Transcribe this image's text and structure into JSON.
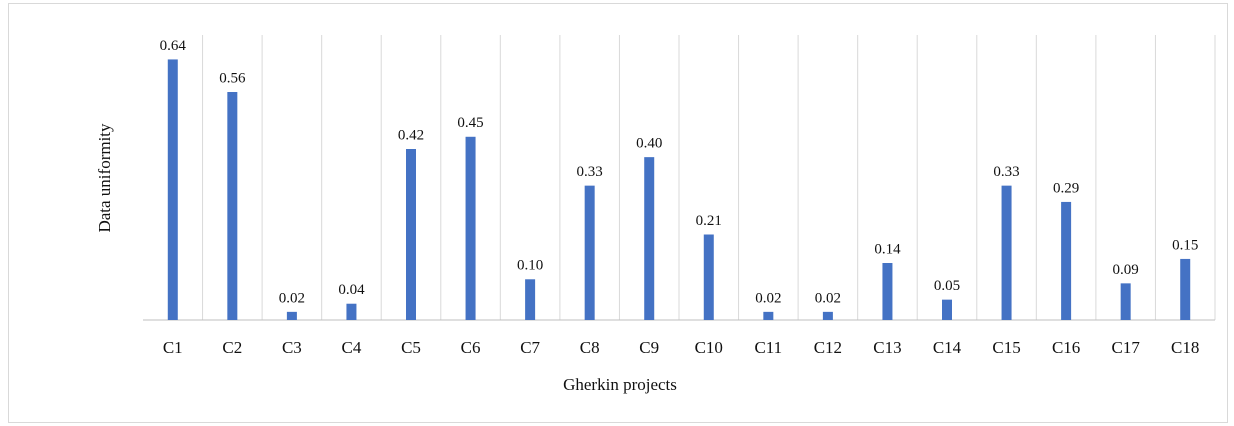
{
  "chart_data": {
    "type": "bar",
    "x_label": "Gherkin projects",
    "y_label": "Data uniformity",
    "categories": [
      "C1",
      "C2",
      "C3",
      "C4",
      "C5",
      "C6",
      "C7",
      "C8",
      "C9",
      "C10",
      "C11",
      "C12",
      "C13",
      "C14",
      "C15",
      "C16",
      "C17",
      "C18"
    ],
    "values": [
      0.64,
      0.56,
      0.02,
      0.04,
      0.42,
      0.45,
      0.1,
      0.33,
      0.4,
      0.21,
      0.02,
      0.02,
      0.14,
      0.05,
      0.33,
      0.29,
      0.09,
      0.15
    ],
    "value_labels": [
      "0.64",
      "0.56",
      "0.02",
      "0.04",
      "0.42",
      "0.45",
      "0.10",
      "0.33",
      "0.40",
      "0.21",
      "0.02",
      "0.02",
      "0.14",
      "0.05",
      "0.33",
      "0.29",
      "0.09",
      "0.15"
    ],
    "color": "#4472c4",
    "ylim": [
      0,
      0.7
    ],
    "grid": true
  }
}
